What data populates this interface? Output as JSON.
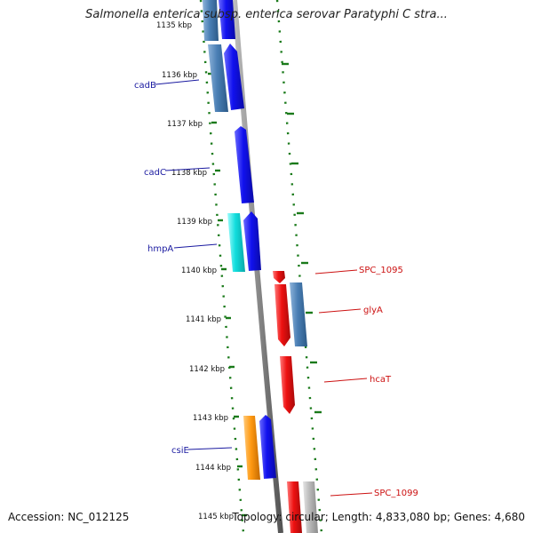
{
  "title": "Salmonella enterica subsp. enterica serovar Paratyphi C stra...",
  "footer": {
    "accession": "Accession: NC_012125",
    "summary": "Topology: circular; Length: 4,833,080 bp; Genes: 4,680"
  },
  "colors": {
    "backbone": "#8a8a8a",
    "ticks": "#1a7a1a",
    "left_labels": "#1a1aa0",
    "right_labels": "#cc1111",
    "gene_blue": "#1111ee",
    "gene_steel": "#4a7fb5",
    "gene_cyan": "#11dddd",
    "gene_orange": "#ff9911",
    "gene_red": "#ee1111",
    "gene_gray": "#b8b8b8"
  },
  "kbp_ticks": [
    "1135 kbp",
    "1136 kbp",
    "1137 kbp",
    "1138 kbp",
    "1139 kbp",
    "1140 kbp",
    "1141 kbp",
    "1142 kbp",
    "1143 kbp",
    "1144 kbp",
    "1145 kbp"
  ],
  "left_gene_labels": [
    "cadB",
    "cadC",
    "hmpA",
    "csiE"
  ],
  "right_gene_labels": [
    "SPC_1095",
    "glyA",
    "hcaT",
    "SPC_1099"
  ]
}
